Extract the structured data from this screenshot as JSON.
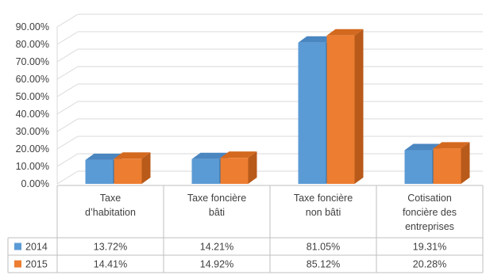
{
  "chart_data": {
    "type": "bar",
    "style": "3d-clustered-column-with-data-table",
    "categories": [
      [
        "Taxe",
        "d’habitation"
      ],
      [
        "Taxe foncière",
        "bâti"
      ],
      [
        "Taxe foncière",
        "non bâti"
      ],
      [
        "Cotisation",
        "foncière des",
        "entreprises"
      ]
    ],
    "series": [
      {
        "name": "2014",
        "values": [
          13.72,
          14.21,
          81.05,
          19.31
        ],
        "labels": [
          "13.72%",
          "14.21%",
          "81.05%",
          "19.31%"
        ],
        "color": "#5b9bd5",
        "color_top": "#4a86c0",
        "color_side": "#2e6da4"
      },
      {
        "name": "2015",
        "values": [
          14.41,
          14.92,
          85.12,
          20.28
        ],
        "labels": [
          "14.41%",
          "14.92%",
          "85.12%",
          "20.28%"
        ],
        "color": "#ed7d31",
        "color_top": "#d3691f",
        "color_side": "#b85a1a"
      }
    ],
    "yticks": [
      "0.00%",
      "10.00%",
      "20.00%",
      "30.00%",
      "40.00%",
      "50.00%",
      "60.00%",
      "70.00%",
      "80.00%",
      "90.00%"
    ],
    "ylim": [
      0,
      90
    ],
    "grid": true,
    "legend": "data-table"
  }
}
